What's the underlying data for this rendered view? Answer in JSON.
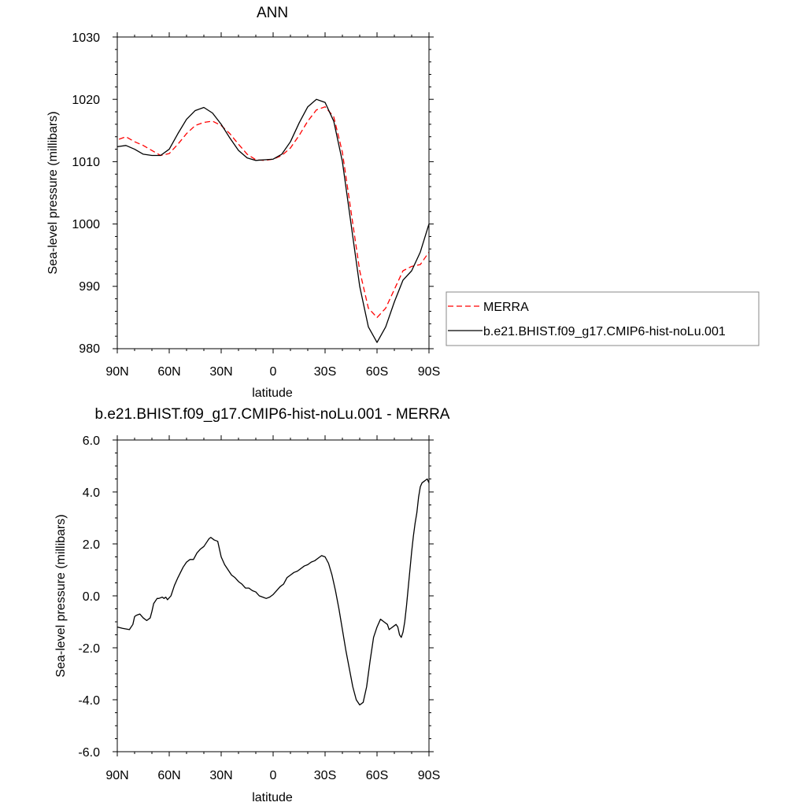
{
  "chart_data": [
    {
      "type": "line",
      "title": "ANN",
      "xlabel": "latitude",
      "ylabel": "Sea-level pressure (millibars)",
      "xlim": [
        -90,
        90
      ],
      "ylim": [
        980,
        1030
      ],
      "x_tick_values": [
        -90,
        -60,
        -30,
        0,
        30,
        60,
        90
      ],
      "x_tick_labels": [
        "90N",
        "60N",
        "30N",
        "0",
        "30S",
        "60S",
        "90S"
      ],
      "y_tick_values": [
        980,
        990,
        1000,
        1010,
        1020,
        1030
      ],
      "y_tick_labels": [
        "980",
        "990",
        "1000",
        "1010",
        "1020",
        "1030"
      ],
      "legend_position": "right",
      "series": [
        {
          "name": "MERRA",
          "color": "#ff0000",
          "dash": "dashed",
          "x": [
            -89,
            -85,
            -80,
            -75,
            -70,
            -65,
            -60,
            -55,
            -50,
            -45,
            -40,
            -35,
            -30,
            -25,
            -20,
            -15,
            -10,
            -5,
            0,
            5,
            10,
            15,
            20,
            25,
            30,
            35,
            40,
            45,
            50,
            55,
            60,
            65,
            70,
            75,
            80,
            85,
            90
          ],
          "y": [
            1013.6,
            1014.0,
            1013.2,
            1012.6,
            1011.8,
            1011.0,
            1011.3,
            1012.8,
            1014.5,
            1015.8,
            1016.3,
            1016.5,
            1015.8,
            1014.5,
            1012.8,
            1011.2,
            1010.3,
            1010.2,
            1010.4,
            1011.0,
            1012.2,
            1014.2,
            1016.5,
            1018.3,
            1018.8,
            1017.2,
            1011.5,
            1002.0,
            992.5,
            986.5,
            985.0,
            986.5,
            989.5,
            992.5,
            993.2,
            993.5,
            995.5
          ]
        },
        {
          "name": "b.e21.BHIST.f09_g17.CMIP6-hist-noLu.001",
          "color": "#000000",
          "dash": "solid",
          "x": [
            -90,
            -85,
            -80,
            -75,
            -70,
            -65,
            -60,
            -55,
            -50,
            -45,
            -40,
            -35,
            -30,
            -25,
            -20,
            -15,
            -10,
            -5,
            0,
            5,
            10,
            15,
            20,
            25,
            30,
            35,
            40,
            45,
            50,
            55,
            60,
            65,
            70,
            75,
            80,
            85,
            90
          ],
          "y": [
            1012.4,
            1012.6,
            1012.0,
            1011.2,
            1011.0,
            1011.0,
            1012.0,
            1014.5,
            1016.8,
            1018.2,
            1018.7,
            1017.8,
            1016.0,
            1013.8,
            1011.8,
            1010.6,
            1010.2,
            1010.3,
            1010.4,
            1011.2,
            1013.2,
            1016.2,
            1018.8,
            1020.0,
            1019.5,
            1016.5,
            1010.0,
            1000.0,
            990.0,
            983.5,
            981.0,
            983.5,
            987.5,
            991.0,
            992.5,
            995.5,
            1000.0
          ]
        }
      ]
    },
    {
      "type": "line",
      "title": "b.e21.BHIST.f09_g17.CMIP6-hist-noLu.001 - MERRA",
      "xlabel": "latitude",
      "ylabel": "Sea-level pressure (millibars)",
      "xlim": [
        -90,
        90
      ],
      "ylim": [
        -6,
        6
      ],
      "x_tick_values": [
        -90,
        -60,
        -30,
        0,
        30,
        60,
        90
      ],
      "x_tick_labels": [
        "90N",
        "60N",
        "30N",
        "0",
        "30S",
        "60S",
        "90S"
      ],
      "y_tick_values": [
        -6,
        -4,
        -2,
        0,
        2,
        4,
        6
      ],
      "y_tick_labels": [
        "-6.0",
        "-4.0",
        "-2.0",
        "0.0",
        "2.0",
        "4.0",
        "6.0"
      ],
      "series": [
        {
          "color": "#000000",
          "dash": "solid",
          "x": [
            -90,
            -87,
            -83,
            -81,
            -80,
            -79,
            -77,
            -75,
            -73,
            -71,
            -70,
            -69,
            -67,
            -66,
            -64,
            -63,
            -62,
            -61,
            -59,
            -57,
            -55,
            -52,
            -50,
            -48,
            -46,
            -44,
            -42,
            -40,
            -38,
            -37,
            -36,
            -34,
            -32,
            -30,
            -28,
            -26,
            -24,
            -22,
            -20,
            -18,
            -16,
            -14,
            -12,
            -10,
            -8,
            -6,
            -4,
            -2,
            0,
            2,
            4,
            6,
            8,
            10,
            12,
            14,
            16,
            18,
            20,
            22,
            24,
            26,
            28,
            30,
            32,
            34,
            36,
            38,
            40,
            42,
            44,
            46,
            48,
            50,
            52,
            54,
            56,
            58,
            60,
            62,
            64,
            66,
            67,
            68,
            70,
            71,
            72,
            73,
            74,
            75,
            76,
            77,
            78,
            79,
            80,
            81,
            82,
            83,
            84,
            85,
            86,
            87,
            88,
            89,
            90
          ],
          "y": [
            -1.2,
            -1.25,
            -1.3,
            -1.1,
            -0.8,
            -0.75,
            -0.7,
            -0.85,
            -0.95,
            -0.85,
            -0.6,
            -0.3,
            -0.1,
            -0.1,
            -0.05,
            -0.1,
            -0.05,
            -0.15,
            0.0,
            0.4,
            0.7,
            1.1,
            1.3,
            1.4,
            1.4,
            1.65,
            1.8,
            1.9,
            2.1,
            2.2,
            2.25,
            2.15,
            2.1,
            1.5,
            1.2,
            1.0,
            0.8,
            0.7,
            0.55,
            0.45,
            0.3,
            0.3,
            0.2,
            0.15,
            0.0,
            -0.05,
            -0.1,
            -0.05,
            0.05,
            0.2,
            0.35,
            0.45,
            0.7,
            0.8,
            0.9,
            0.95,
            1.05,
            1.15,
            1.2,
            1.3,
            1.35,
            1.45,
            1.55,
            1.5,
            1.25,
            0.8,
            0.2,
            -0.5,
            -1.3,
            -2.1,
            -2.8,
            -3.5,
            -4.0,
            -4.2,
            -4.1,
            -3.5,
            -2.5,
            -1.6,
            -1.2,
            -0.9,
            -1.0,
            -1.1,
            -1.3,
            -1.25,
            -1.15,
            -1.1,
            -1.2,
            -1.5,
            -1.6,
            -1.4,
            -1.0,
            -0.4,
            0.3,
            1.0,
            1.7,
            2.3,
            2.8,
            3.2,
            3.8,
            4.2,
            4.35,
            4.4,
            4.45,
            4.5,
            4.35
          ]
        }
      ]
    }
  ]
}
